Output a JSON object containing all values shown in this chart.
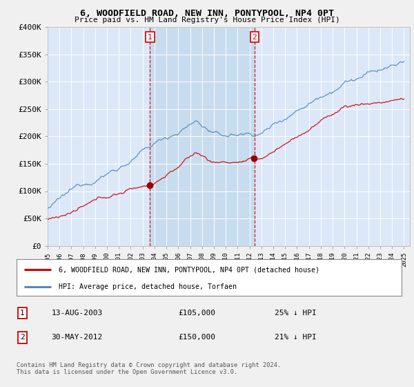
{
  "title": "6, WOODFIELD ROAD, NEW INN, PONTYPOOL, NP4 0PT",
  "subtitle": "Price paid vs. HM Land Registry's House Price Index (HPI)",
  "legend_label_red": "6, WOODFIELD ROAD, NEW INN, PONTYPOOL, NP4 0PT (detached house)",
  "legend_label_blue": "HPI: Average price, detached house, Torfaen",
  "transaction1_date": "13-AUG-2003",
  "transaction1_price": "£105,000",
  "transaction1_hpi": "25% ↓ HPI",
  "transaction2_date": "30-MAY-2012",
  "transaction2_price": "£150,000",
  "transaction2_hpi": "21% ↓ HPI",
  "footer": "Contains HM Land Registry data © Crown copyright and database right 2024.\nThis data is licensed under the Open Government Licence v3.0.",
  "ylim": [
    0,
    400000
  ],
  "yticks": [
    0,
    50000,
    100000,
    150000,
    200000,
    250000,
    300000,
    350000,
    400000
  ],
  "ylabels": [
    "£0",
    "£50K",
    "£100K",
    "£150K",
    "£200K",
    "£250K",
    "£300K",
    "£350K",
    "£400K"
  ],
  "xlim_start": 1995.0,
  "xlim_end": 2025.5,
  "transaction1_x": 2003.62,
  "transaction2_x": 2012.41,
  "fig_bg_color": "#f0f0f0",
  "plot_bg_color": "#dce8f8",
  "shade_color": "#c8dcf0",
  "grid_color": "#ffffff",
  "red_line_color": "#cc0000",
  "blue_line_color": "#5588bb"
}
